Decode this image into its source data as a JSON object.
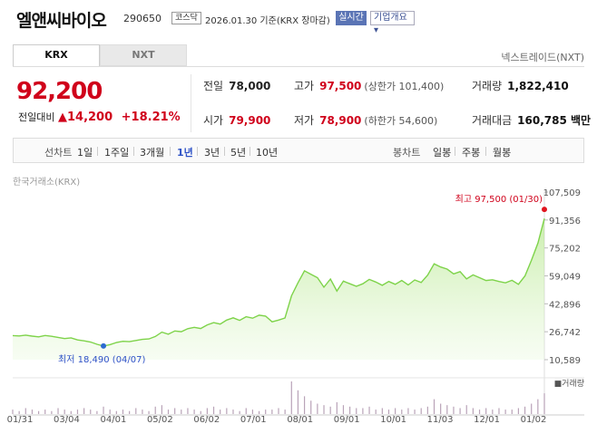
{
  "header": {
    "title": "엘앤씨바이오",
    "code": "290650",
    "market": "코스닥",
    "date_info": "2026.01.30 기준(KRX 장마감)",
    "realtime_label": "실시간",
    "company_label": "기업개요 ▾"
  },
  "tabs": {
    "krx": "KRX",
    "nxt": "NXT",
    "nextrade": "넥스트레이드(NXT)"
  },
  "quote": {
    "price": "92,200",
    "change_label": "전일대비",
    "change_arrow": "▲",
    "change_value": "14,200",
    "change_pct": "+18.21%"
  },
  "stats": {
    "prev_label": "전일",
    "prev": "78,000",
    "open_label": "시가",
    "open": "79,900",
    "high_label": "고가",
    "high": "97,500",
    "upper_limit": "(상한가 101,400)",
    "low_label": "저가",
    "low": "78,900",
    "lower_limit": "(하한가 54,600)",
    "volume_label": "거래량",
    "volume": "1,822,410",
    "amount_label": "거래대금",
    "amount": "160,785 백만"
  },
  "periods": {
    "line_label": "선차트",
    "line_items": [
      "1일",
      "1주일",
      "3개월",
      "1년",
      "3년",
      "5년",
      "10년"
    ],
    "active": "1년",
    "candle_label": "봉차트",
    "candle_items": [
      "일봉",
      "주봉",
      "월봉"
    ]
  },
  "chart_data": {
    "type": "area",
    "source_label": "한국거래소(KRX)",
    "x_labels": [
      "01/31",
      "03/04",
      "04/01",
      "05/02",
      "06/02",
      "07/01",
      "08/01",
      "09/01",
      "10/01",
      "11/03",
      "12/01",
      "01/02"
    ],
    "y_ticks": [
      10589,
      26742,
      42896,
      59049,
      75202,
      91356,
      107509
    ],
    "y_tick_labels": [
      "10,589",
      "26,742",
      "42,896",
      "59,049",
      "75,202",
      "91,356",
      "107,509"
    ],
    "ylim": [
      10589,
      107509
    ],
    "series": [
      {
        "values": [
          24500,
          24300,
          24800,
          24200,
          23800,
          24600,
          24100,
          23500,
          22800,
          23200,
          22000,
          21500,
          20800,
          19500,
          18490,
          19300,
          20500,
          21200,
          21000,
          21700,
          22300,
          22600,
          24000,
          26500,
          25300,
          27200,
          26800,
          28500,
          29300,
          28600,
          30700,
          32000,
          31200,
          33500,
          34800,
          33300,
          35400,
          34600,
          36300,
          35800,
          32500,
          33500,
          34700,
          47500,
          55000,
          62000,
          60000,
          58000,
          52500,
          57200,
          50300,
          56000,
          54500,
          53000,
          54500,
          57000,
          55500,
          53600,
          55800,
          54200,
          56400,
          53800,
          56700,
          55200,
          59500,
          66000,
          64200,
          63000,
          60200,
          61500,
          57300,
          59600,
          58000,
          56400,
          56800,
          55800,
          55000,
          56500,
          54200,
          59000,
          68000,
          78000,
          92200
        ]
      }
    ],
    "max_annotation": "최고 97,500 (01/30)",
    "min_annotation": "최저 18,490 (04/07)",
    "volume_label": "거래량",
    "volume": [
      3,
      2,
      4,
      3,
      2,
      3,
      2,
      4,
      3,
      2,
      3,
      4,
      3,
      2,
      5,
      3,
      2,
      3,
      2,
      4,
      3,
      2,
      5,
      6,
      3,
      4,
      3,
      4,
      3,
      2,
      4,
      5,
      3,
      4,
      3,
      2,
      4,
      3,
      2,
      3,
      3,
      4,
      3,
      22,
      16,
      12,
      9,
      7,
      6,
      5,
      8,
      6,
      5,
      4,
      4,
      5,
      3,
      4,
      3,
      4,
      3,
      4,
      3,
      4,
      5,
      10,
      7,
      6,
      5,
      4,
      6,
      4,
      3,
      4,
      3,
      4,
      3,
      3,
      4,
      5,
      7,
      10,
      14
    ]
  }
}
